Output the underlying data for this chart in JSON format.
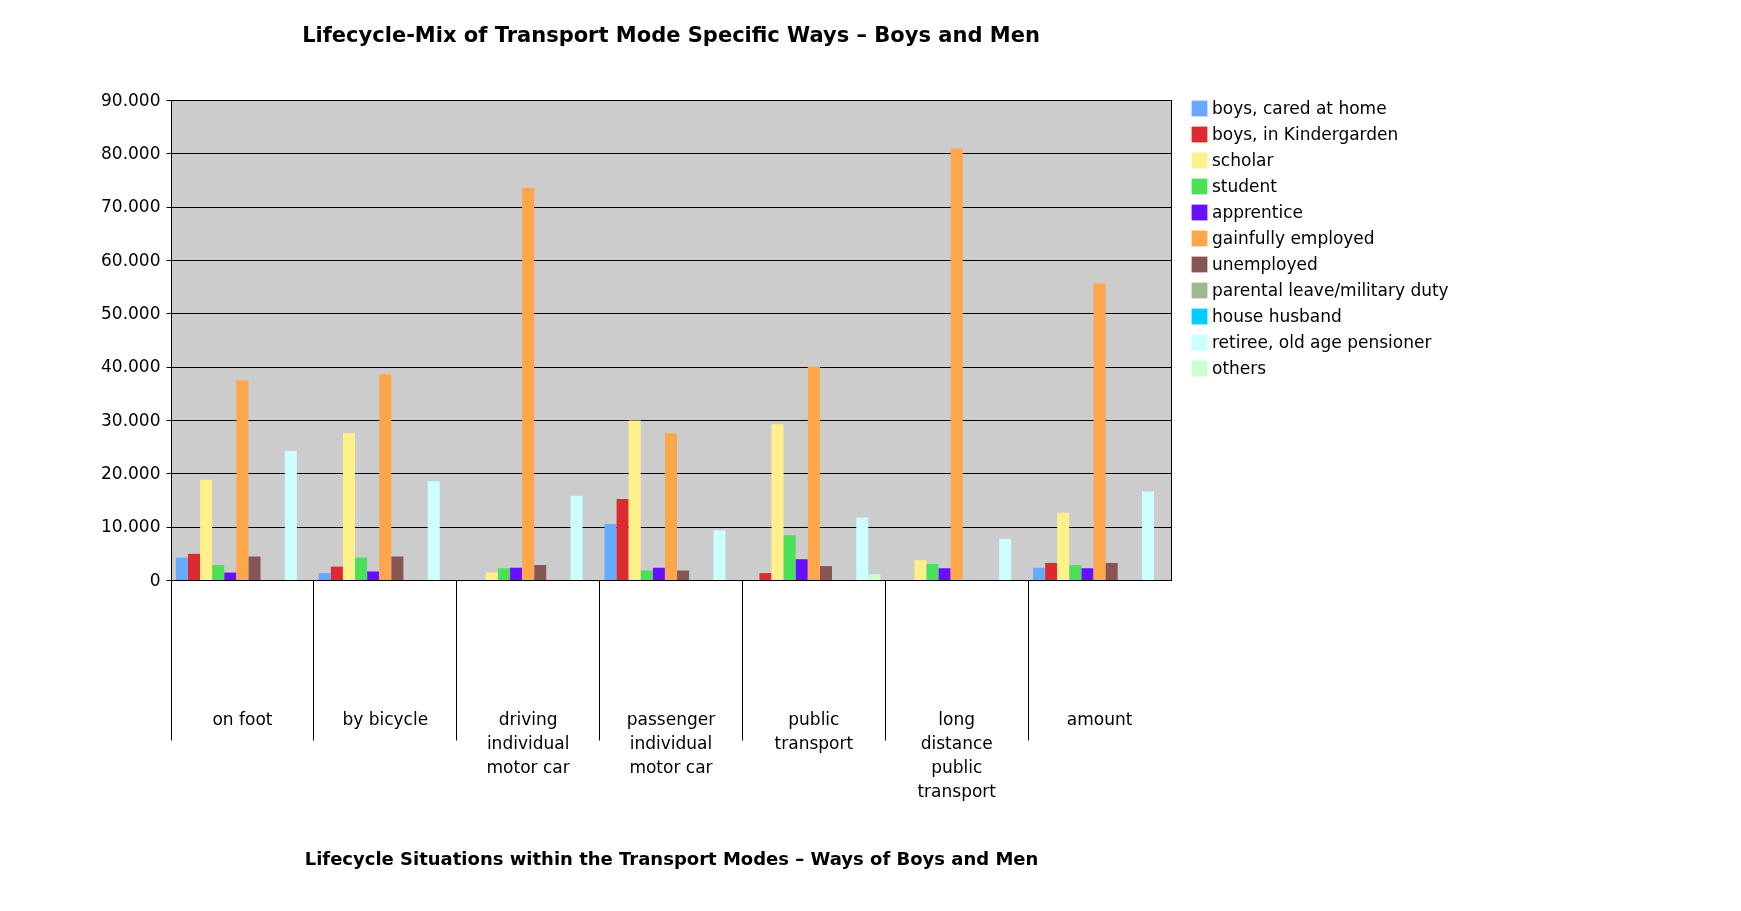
{
  "chart_data": {
    "type": "bar",
    "title": "Lifecycle-Mix of Transport Mode Specific Ways – Boys and Men",
    "xlabel": "Lifecycle Situations within the Transport Modes – Ways of Boys and Men",
    "categories": [
      "on foot",
      "by bicycle",
      "driving\nindividual\nmotor car",
      "passenger\nindividual\nmotor car",
      "public\ntransport",
      "long\ndistance\npublic\ntransport",
      "amount"
    ],
    "series": [
      {
        "name": "boys, cared at home",
        "color": "#66aaff",
        "values": [
          4200,
          1300,
          null,
          10500,
          null,
          null,
          2300
        ]
      },
      {
        "name": "boys, in Kindergarden",
        "color": "#dd2a30",
        "values": [
          4900,
          2500,
          null,
          15200,
          1300,
          null,
          3200
        ]
      },
      {
        "name": "scholar",
        "color": "#fff08a",
        "values": [
          18800,
          27500,
          1400,
          29900,
          29200,
          3700,
          12600
        ]
      },
      {
        "name": "student",
        "color": "#4ce058",
        "values": [
          2800,
          4200,
          2200,
          1800,
          8400,
          3000,
          2800
        ]
      },
      {
        "name": "apprentice",
        "color": "#6610ff",
        "values": [
          1400,
          1600,
          2300,
          2300,
          3900,
          2200,
          2200
        ]
      },
      {
        "name": "gainfully employed",
        "color": "#ffa64a",
        "values": [
          37400,
          38600,
          73500,
          27500,
          40000,
          80900,
          55600
        ]
      },
      {
        "name": "unemployed",
        "color": "#885555",
        "values": [
          4400,
          4400,
          2800,
          1800,
          2600,
          null,
          3200
        ]
      },
      {
        "name": "parental leave/military duty",
        "color": "#a0b890",
        "values": [
          null,
          null,
          null,
          null,
          null,
          null,
          null
        ]
      },
      {
        "name": "house husband",
        "color": "#00ccff",
        "values": [
          null,
          null,
          null,
          null,
          null,
          null,
          null
        ]
      },
      {
        "name": "retiree, old age pensioner",
        "color": "#ccffff",
        "values": [
          24200,
          18500,
          15800,
          9300,
          11700,
          7700,
          16600
        ]
      },
      {
        "name": "others",
        "color": "#ccffcc",
        "values": [
          null,
          null,
          null,
          null,
          1100,
          null,
          null
        ]
      }
    ],
    "ylim": [
      0,
      90000
    ],
    "yticks": [
      {
        "value": 0,
        "label": "0"
      },
      {
        "value": 10000,
        "label": "10.000"
      },
      {
        "value": 20000,
        "label": "20.000"
      },
      {
        "value": 30000,
        "label": "30.000"
      },
      {
        "value": 40000,
        "label": "40.000"
      },
      {
        "value": 50000,
        "label": "50.000"
      },
      {
        "value": 60000,
        "label": "60.000"
      },
      {
        "value": 70000,
        "label": "70.000"
      },
      {
        "value": 80000,
        "label": "80.000"
      },
      {
        "value": 90000,
        "label": "90.000"
      }
    ],
    "grid": "y",
    "legend": "right"
  }
}
